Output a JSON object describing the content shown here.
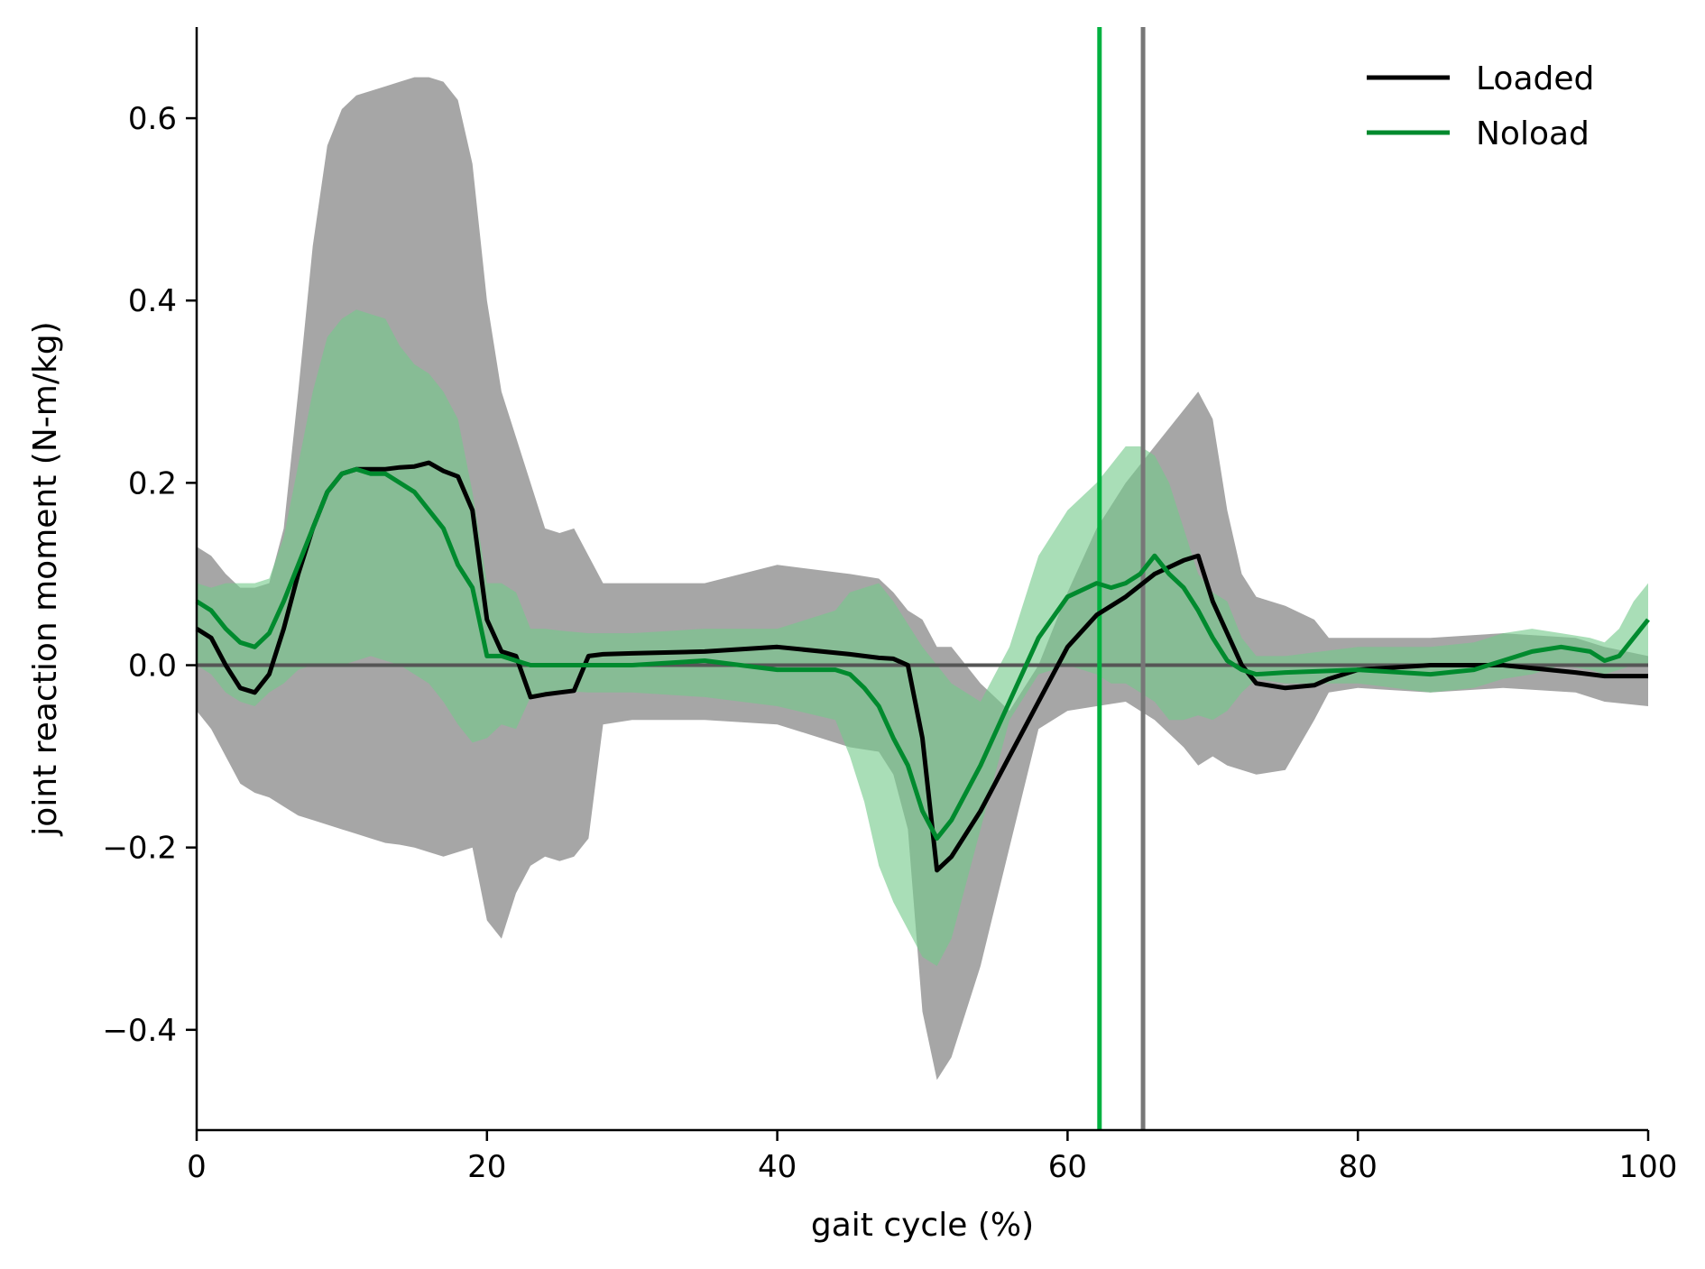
{
  "chart_data": {
    "type": "line",
    "xlabel": "gait cycle (%)",
    "ylabel": "joint reaction moment (N-m/kg)",
    "xlim": [
      0,
      100
    ],
    "ylim": [
      -0.51,
      0.7
    ],
    "x_ticks": [
      0,
      20,
      40,
      60,
      80,
      100
    ],
    "x_tick_labels": [
      "0",
      "20",
      "40",
      "60",
      "80",
      "100"
    ],
    "y_ticks": [
      -0.4,
      -0.2,
      0.0,
      0.2,
      0.4,
      0.6
    ],
    "y_tick_labels": [
      "−0.4",
      "−0.2",
      "0.0",
      "0.2",
      "0.4",
      "0.6"
    ],
    "grid": false,
    "legend": {
      "position": "top-right",
      "entries": [
        "Loaded",
        "Noload"
      ]
    },
    "zero_line": {
      "y": 0.0,
      "color": "#555555"
    },
    "vertical_lines": [
      {
        "x": 62.2,
        "color": "#00b140",
        "series": "Noload"
      },
      {
        "x": 65.2,
        "color": "#777777",
        "series": "Loaded"
      }
    ],
    "series": [
      {
        "name": "Loaded",
        "color": "#000000",
        "band_color": "#a6a6a6",
        "x": [
          0,
          1,
          2,
          3,
          4,
          5,
          6,
          7,
          8,
          9,
          10,
          11,
          12,
          13,
          14,
          15,
          16,
          17,
          18,
          19,
          20,
          21,
          22,
          23,
          24,
          25,
          26,
          27,
          28,
          30,
          35,
          40,
          45,
          47,
          48,
          49,
          50,
          51,
          52,
          54,
          56,
          58,
          60,
          62,
          64,
          66,
          68,
          69,
          70,
          71,
          72,
          73,
          75,
          77,
          78,
          80,
          85,
          90,
          95,
          97,
          100
        ],
        "y": [
          0.04,
          0.03,
          0.0,
          -0.025,
          -0.03,
          -0.01,
          0.04,
          0.1,
          0.15,
          0.19,
          0.21,
          0.215,
          0.215,
          0.215,
          0.217,
          0.218,
          0.222,
          0.213,
          0.207,
          0.17,
          0.05,
          0.015,
          0.01,
          -0.035,
          -0.032,
          -0.03,
          -0.028,
          0.01,
          0.012,
          0.013,
          0.015,
          0.02,
          0.012,
          0.008,
          0.007,
          0.0,
          -0.08,
          -0.225,
          -0.21,
          -0.16,
          -0.1,
          -0.04,
          0.02,
          0.055,
          0.075,
          0.1,
          0.115,
          0.12,
          0.07,
          0.035,
          0.0,
          -0.02,
          -0.025,
          -0.022,
          -0.015,
          -0.005,
          0.0,
          0.0,
          -0.008,
          -0.012,
          -0.012
        ],
        "lower": [
          -0.05,
          -0.07,
          -0.1,
          -0.13,
          -0.14,
          -0.145,
          -0.155,
          -0.165,
          -0.17,
          -0.175,
          -0.18,
          -0.185,
          -0.19,
          -0.195,
          -0.197,
          -0.2,
          -0.205,
          -0.21,
          -0.205,
          -0.2,
          -0.28,
          -0.3,
          -0.25,
          -0.22,
          -0.21,
          -0.215,
          -0.21,
          -0.19,
          -0.065,
          -0.06,
          -0.06,
          -0.065,
          -0.09,
          -0.095,
          -0.12,
          -0.18,
          -0.38,
          -0.455,
          -0.43,
          -0.33,
          -0.2,
          -0.07,
          -0.05,
          -0.045,
          -0.04,
          -0.06,
          -0.09,
          -0.11,
          -0.1,
          -0.11,
          -0.115,
          -0.12,
          -0.115,
          -0.06,
          -0.03,
          -0.025,
          -0.03,
          -0.025,
          -0.03,
          -0.04,
          -0.045
        ],
        "upper": [
          0.13,
          0.12,
          0.1,
          0.085,
          0.085,
          0.09,
          0.15,
          0.3,
          0.46,
          0.57,
          0.61,
          0.625,
          0.63,
          0.635,
          0.64,
          0.645,
          0.645,
          0.64,
          0.62,
          0.55,
          0.4,
          0.3,
          0.25,
          0.2,
          0.15,
          0.145,
          0.15,
          0.12,
          0.09,
          0.09,
          0.09,
          0.11,
          0.1,
          0.095,
          0.08,
          0.06,
          0.05,
          0.02,
          0.02,
          -0.02,
          -0.05,
          0.0,
          0.08,
          0.15,
          0.2,
          0.24,
          0.28,
          0.3,
          0.27,
          0.17,
          0.1,
          0.075,
          0.065,
          0.05,
          0.03,
          0.03,
          0.03,
          0.035,
          0.03,
          0.02,
          0.01
        ]
      },
      {
        "name": "Noload",
        "color": "#008a2e",
        "band_color": "#74c98a",
        "x": [
          0,
          1,
          2,
          3,
          4,
          5,
          6,
          7,
          8,
          9,
          10,
          11,
          12,
          13,
          14,
          15,
          16,
          17,
          18,
          19,
          20,
          21,
          22,
          23,
          24,
          25,
          27,
          30,
          35,
          40,
          44,
          45,
          46,
          47,
          48,
          49,
          50,
          51,
          52,
          54,
          56,
          58,
          60,
          62,
          63,
          64,
          65,
          66,
          67,
          68,
          69,
          70,
          71,
          72,
          73,
          75,
          80,
          85,
          88,
          90,
          92,
          94,
          96,
          97,
          98,
          99,
          100
        ],
        "y": [
          0.07,
          0.06,
          0.04,
          0.025,
          0.02,
          0.035,
          0.07,
          0.11,
          0.15,
          0.19,
          0.21,
          0.215,
          0.21,
          0.21,
          0.2,
          0.19,
          0.17,
          0.15,
          0.11,
          0.085,
          0.01,
          0.01,
          0.005,
          0.0,
          0.0,
          0.0,
          0.0,
          0.0,
          0.005,
          -0.005,
          -0.005,
          -0.01,
          -0.025,
          -0.045,
          -0.08,
          -0.11,
          -0.16,
          -0.19,
          -0.17,
          -0.11,
          -0.04,
          0.03,
          0.075,
          0.09,
          0.085,
          0.09,
          0.1,
          0.12,
          0.1,
          0.085,
          0.06,
          0.03,
          0.005,
          -0.005,
          -0.01,
          -0.008,
          -0.005,
          -0.01,
          -0.005,
          0.005,
          0.015,
          0.02,
          0.015,
          0.005,
          0.01,
          0.03,
          0.05
        ],
        "lower": [
          0.0,
          -0.01,
          -0.03,
          -0.04,
          -0.045,
          -0.03,
          -0.02,
          -0.005,
          0.0,
          0.0,
          0.0,
          0.005,
          0.01,
          0.005,
          0.0,
          -0.01,
          -0.02,
          -0.04,
          -0.065,
          -0.085,
          -0.08,
          -0.065,
          -0.07,
          -0.035,
          -0.03,
          -0.028,
          -0.03,
          -0.03,
          -0.035,
          -0.045,
          -0.06,
          -0.1,
          -0.15,
          -0.22,
          -0.26,
          -0.29,
          -0.32,
          -0.33,
          -0.3,
          -0.18,
          -0.06,
          -0.01,
          0.0,
          -0.01,
          -0.02,
          -0.02,
          -0.03,
          -0.04,
          -0.06,
          -0.06,
          -0.055,
          -0.06,
          -0.05,
          -0.03,
          -0.015,
          -0.02,
          -0.02,
          -0.03,
          -0.025,
          -0.015,
          -0.01,
          0.0,
          -0.005,
          -0.01,
          -0.005,
          0.0,
          0.0
        ],
        "upper": [
          0.09,
          0.085,
          0.09,
          0.09,
          0.09,
          0.095,
          0.14,
          0.22,
          0.3,
          0.36,
          0.38,
          0.39,
          0.385,
          0.38,
          0.35,
          0.33,
          0.32,
          0.3,
          0.27,
          0.19,
          0.09,
          0.09,
          0.08,
          0.04,
          0.04,
          0.038,
          0.035,
          0.035,
          0.04,
          0.04,
          0.06,
          0.08,
          0.085,
          0.09,
          0.07,
          0.045,
          0.02,
          0.0,
          -0.02,
          -0.04,
          0.02,
          0.12,
          0.17,
          0.2,
          0.22,
          0.24,
          0.24,
          0.23,
          0.2,
          0.15,
          0.1,
          0.08,
          0.07,
          0.03,
          0.01,
          0.01,
          0.02,
          0.02,
          0.025,
          0.035,
          0.04,
          0.035,
          0.03,
          0.025,
          0.04,
          0.07,
          0.09
        ]
      }
    ]
  }
}
